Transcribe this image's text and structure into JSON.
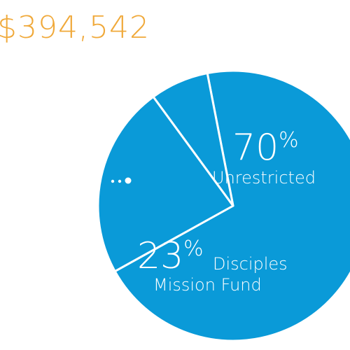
{
  "total_amount": "$394,542",
  "colors": {
    "total_text": "#f0a93a",
    "slice_fill": "#0a9ad8",
    "slice_border": "#ffffff"
  },
  "chart_data": {
    "type": "pie",
    "title": "",
    "slices": [
      {
        "pct_number": "70",
        "pct_sign": "%",
        "label_line1": "Unrestricted",
        "label_line2": "",
        "value": 70
      },
      {
        "pct_number": "23",
        "pct_sign": "%",
        "label_line1": "Disciples",
        "label_line2": "Mission Fund",
        "value": 23
      },
      {
        "pct_number": "",
        "pct_sign": "",
        "label_line1": "",
        "label_line2": "",
        "value": 7
      }
    ],
    "legend": "none"
  }
}
